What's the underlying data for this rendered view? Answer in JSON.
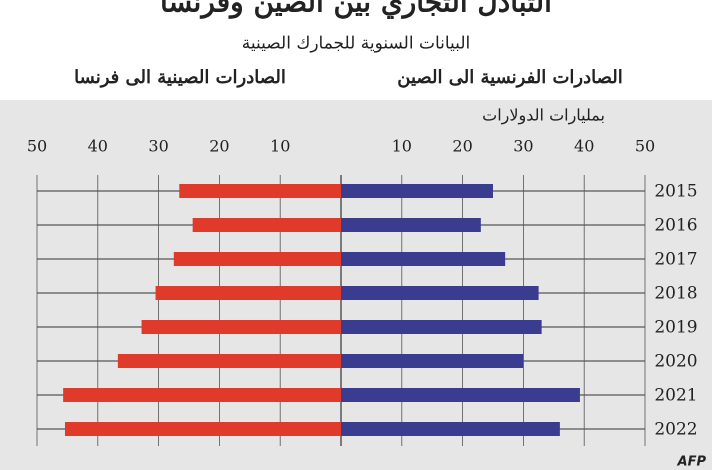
{
  "chart_data": {
    "type": "butterfly",
    "title": "التبادل التجاري بين الصين وفرنسا",
    "subtitle": "البيانات السنوية للجمارك الصينية",
    "unit_label": "بمليارات الدولارات",
    "categories": [
      "2015",
      "2016",
      "2017",
      "2018",
      "2019",
      "2020",
      "2021",
      "2022"
    ],
    "series": [
      {
        "name": "الصادرات الصينية الى فرنسا",
        "color": "#e03a2a",
        "side": "left",
        "values": [
          26.6,
          24.4,
          27.5,
          30.5,
          32.8,
          36.7,
          45.7,
          45.4
        ]
      },
      {
        "name": "الصادرات الفرنسية الى الصين",
        "color": "#3a3d8f",
        "side": "right",
        "values": [
          25,
          23,
          27,
          32.5,
          33,
          30,
          39.3,
          36
        ]
      }
    ],
    "xlim": [
      0,
      50
    ],
    "xticks": [
      10,
      20,
      30,
      40,
      50
    ],
    "grid": true
  },
  "credit": "AFP"
}
